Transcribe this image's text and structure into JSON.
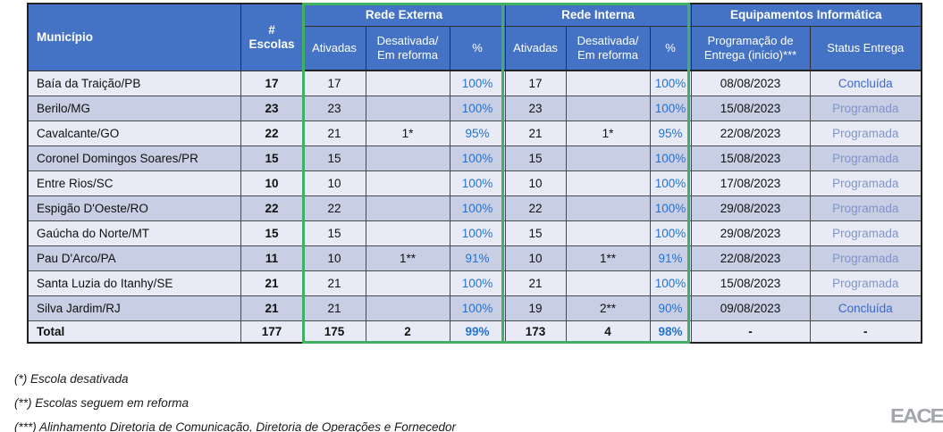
{
  "colors": {
    "header_blue": "#4472C4",
    "row_light": "#E8EBF5",
    "row_dark": "#C8CFE5",
    "green_accent": "#42AF62",
    "pct_blue": "#2472D4",
    "status_concluida": "#3A68CE",
    "status_programada": "#8093C9",
    "logo_gray": "#A2A6AB"
  },
  "table": {
    "header": {
      "municipio": "Município",
      "escolas": "# Escolas",
      "rede_externa": "Rede Externa",
      "rede_interna": "Rede Interna",
      "equipamentos": "Equipamentos Informática",
      "ativadas": "Ativadas",
      "desativada": "Desativada/\nEm reforma",
      "pct": "%",
      "programacao": "Programação de\nEntrega (início)***",
      "status": "Status Entrega"
    },
    "rows": [
      {
        "municipio": "Baía da Traição/PB",
        "escolas": "17",
        "ext_ativadas": "17",
        "ext_desativada": "",
        "ext_pct": "100%",
        "int_ativadas": "17",
        "int_desativada": "",
        "int_pct": "100%",
        "programacao": "08/08/2023",
        "status": "Concluída"
      },
      {
        "municipio": "Berilo/MG",
        "escolas": "23",
        "ext_ativadas": "23",
        "ext_desativada": "",
        "ext_pct": "100%",
        "int_ativadas": "23",
        "int_desativada": "",
        "int_pct": "100%",
        "programacao": "15/08/2023",
        "status": "Programada"
      },
      {
        "municipio": "Cavalcante/GO",
        "escolas": "22",
        "ext_ativadas": "21",
        "ext_desativada": "1*",
        "ext_pct": "95%",
        "int_ativadas": "21",
        "int_desativada": "1*",
        "int_pct": "95%",
        "programacao": "22/08/2023",
        "status": "Programada"
      },
      {
        "municipio": "Coronel Domingos Soares/PR",
        "escolas": "15",
        "ext_ativadas": "15",
        "ext_desativada": "",
        "ext_pct": "100%",
        "int_ativadas": "15",
        "int_desativada": "",
        "int_pct": "100%",
        "programacao": "15/08/2023",
        "status": "Programada"
      },
      {
        "municipio": "Entre Rios/SC",
        "escolas": "10",
        "ext_ativadas": "10",
        "ext_desativada": "",
        "ext_pct": "100%",
        "int_ativadas": "10",
        "int_desativada": "",
        "int_pct": "100%",
        "programacao": "17/08/2023",
        "status": "Programada"
      },
      {
        "municipio": "Espigão D'Oeste/RO",
        "escolas": "22",
        "ext_ativadas": "22",
        "ext_desativada": "",
        "ext_pct": "100%",
        "int_ativadas": "22",
        "int_desativada": "",
        "int_pct": "100%",
        "programacao": "29/08/2023",
        "status": "Programada"
      },
      {
        "municipio": "Gaúcha do Norte/MT",
        "escolas": "15",
        "ext_ativadas": "15",
        "ext_desativada": "",
        "ext_pct": "100%",
        "int_ativadas": "15",
        "int_desativada": "",
        "int_pct": "100%",
        "programacao": "29/08/2023",
        "status": "Programada"
      },
      {
        "municipio": "Pau D'Arco/PA",
        "escolas": "11",
        "ext_ativadas": "10",
        "ext_desativada": "1**",
        "ext_pct": "91%",
        "int_ativadas": "10",
        "int_desativada": "1**",
        "int_pct": "91%",
        "programacao": "22/08/2023",
        "status": "Programada"
      },
      {
        "municipio": "Santa Luzia do Itanhy/SE",
        "escolas": "21",
        "ext_ativadas": "21",
        "ext_desativada": "",
        "ext_pct": "100%",
        "int_ativadas": "21",
        "int_desativada": "",
        "int_pct": "100%",
        "programacao": "15/08/2023",
        "status": "Programada"
      },
      {
        "municipio": "Silva Jardim/RJ",
        "escolas": "21",
        "ext_ativadas": "21",
        "ext_desativada": "",
        "ext_pct": "100%",
        "int_ativadas": "19",
        "int_desativada": "2**",
        "int_pct": "90%",
        "programacao": "09/08/2023",
        "status": "Concluída"
      }
    ],
    "total": {
      "label": "Total",
      "escolas": "177",
      "ext_ativadas": "175",
      "ext_desativada": "2",
      "ext_pct": "99%",
      "int_ativadas": "173",
      "int_desativada": "4",
      "int_pct": "98%",
      "programacao": "-",
      "status": "-"
    }
  },
  "footnotes": [
    "(*) Escola desativada",
    "(**) Escolas seguem em reforma",
    "(***) Alinhamento Diretoria de Comunicação, Diretoria de Operações e Fornecedor"
  ],
  "logo": {
    "text": "EACE"
  }
}
